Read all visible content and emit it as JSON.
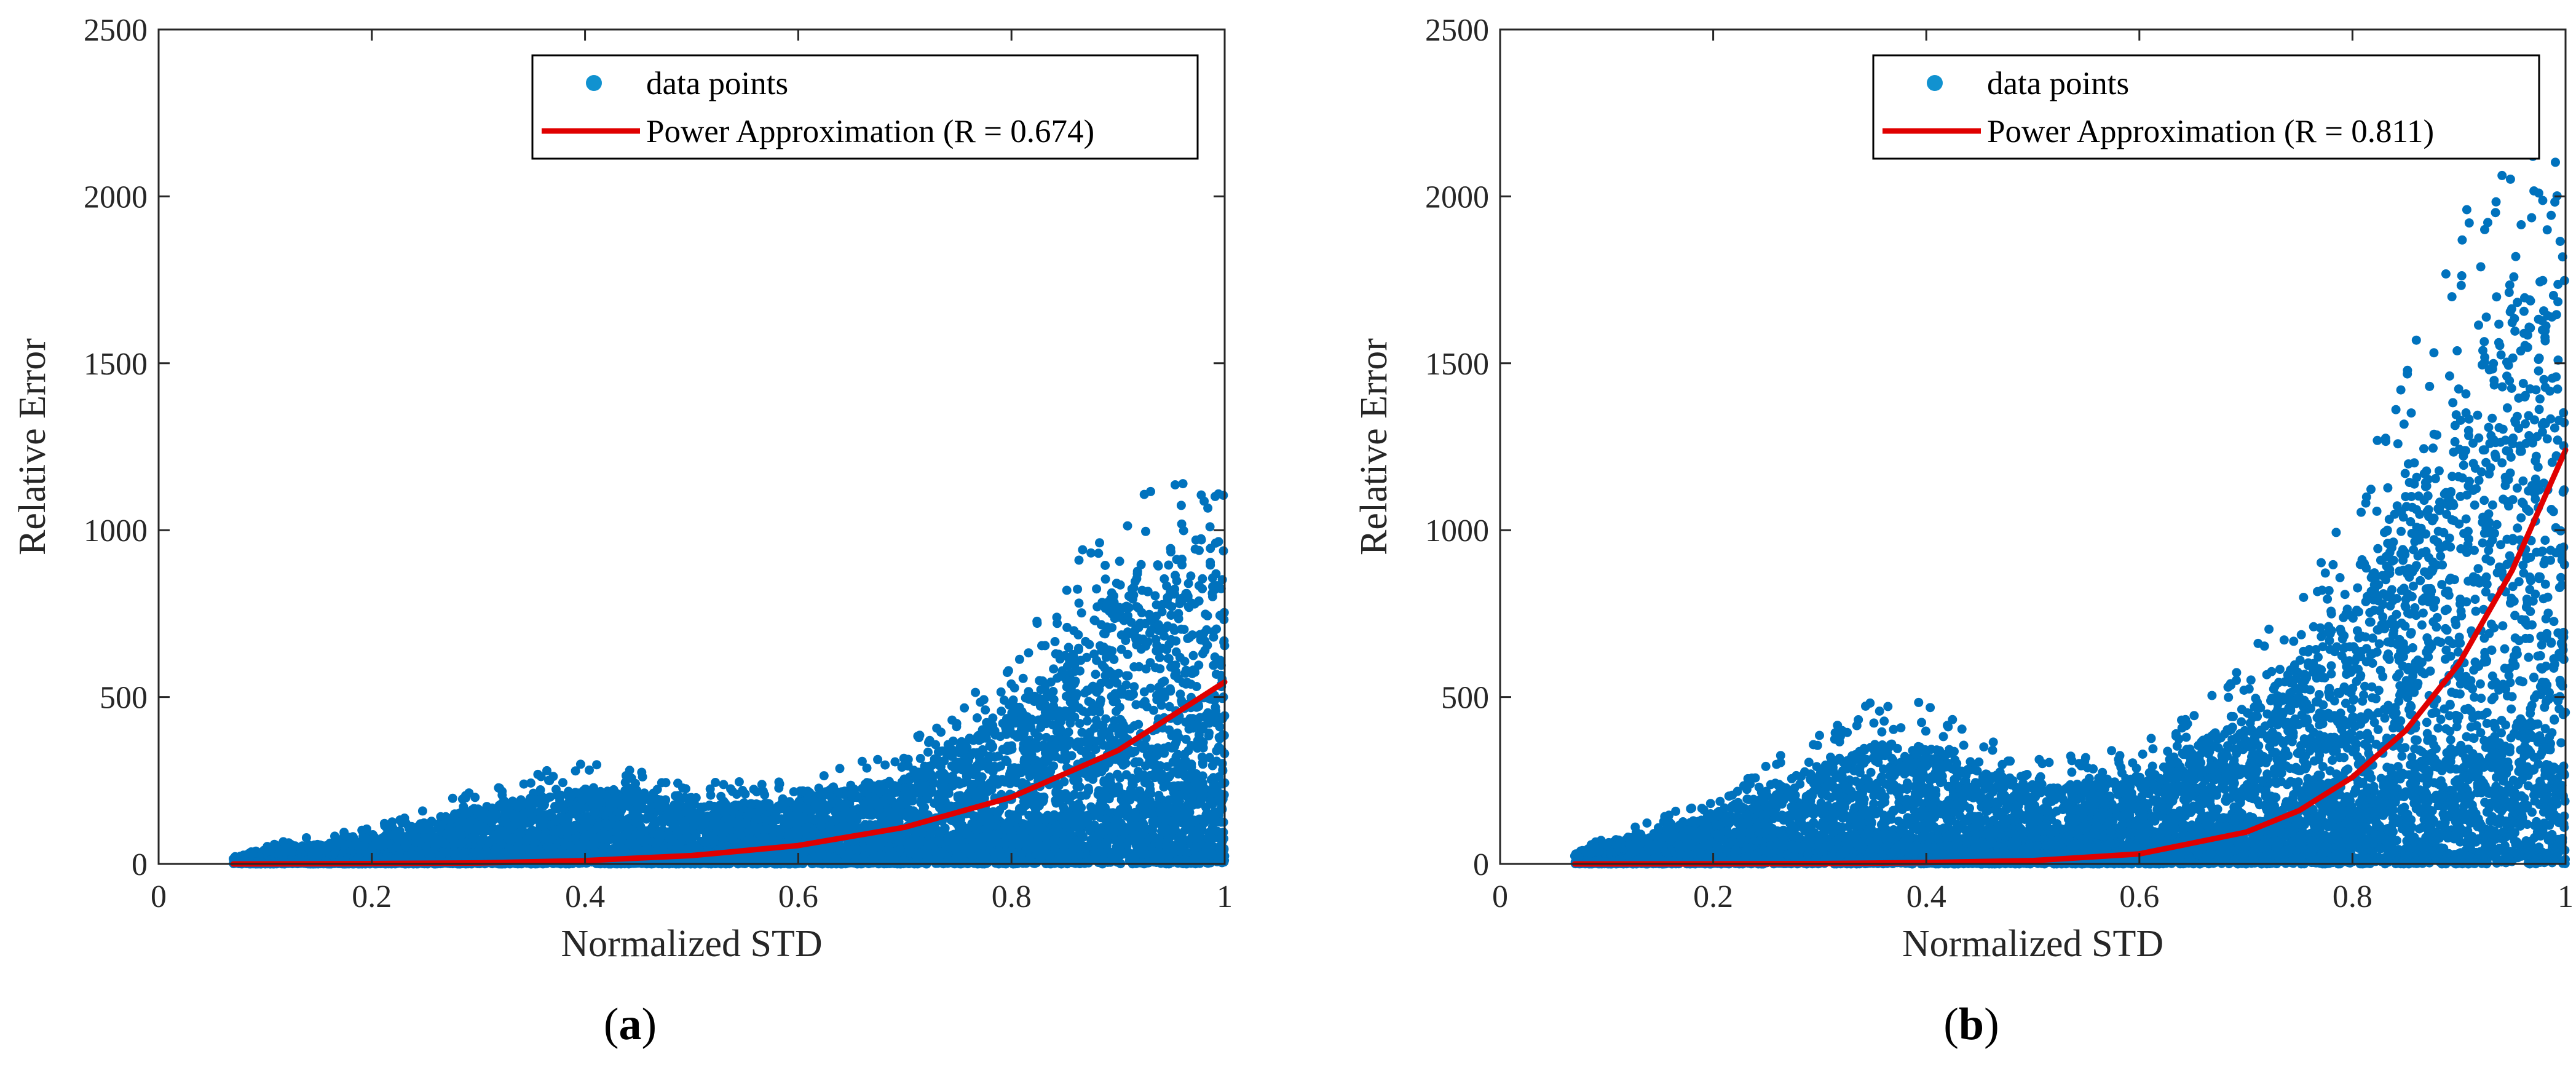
{
  "colors": {
    "points": "#0072BD",
    "fit": "#E00000",
    "axis": "#262626",
    "legend_marker": "#1192D0"
  },
  "chart_data": [
    {
      "type": "scatter",
      "panel_label": "a",
      "xlabel": "Normalized STD",
      "ylabel": "Relative Error",
      "xlim": [
        0,
        1
      ],
      "ylim": [
        0,
        2500
      ],
      "xticks": [
        0,
        0.2,
        0.4,
        0.6,
        0.8,
        1
      ],
      "xtick_labels": [
        "0",
        "0.2",
        "0.4",
        "0.6",
        "0.8",
        "1"
      ],
      "yticks": [
        0,
        500,
        1000,
        1500,
        2000,
        2500
      ],
      "ytick_labels": [
        "0",
        "500",
        "1000",
        "1500",
        "2000",
        "2500"
      ],
      "grid": false,
      "legend_position": "top-right",
      "series": [
        {
          "name": "data points",
          "kind": "scatter",
          "x_range": [
            0.07,
            1.0
          ],
          "approx_max_y": 1140,
          "envelope": [
            [
              0.07,
              25
            ],
            [
              0.1,
              45
            ],
            [
              0.2,
              80
            ],
            [
              0.3,
              170
            ],
            [
              0.4,
              230
            ],
            [
              0.5,
              180
            ],
            [
              0.6,
              190
            ],
            [
              0.7,
              260
            ],
            [
              0.8,
              460
            ],
            [
              0.85,
              650
            ],
            [
              0.9,
              850
            ],
            [
              0.95,
              950
            ],
            [
              1.0,
              1000
            ]
          ]
        },
        {
          "name": "Power Approximation (R = 0.674)",
          "kind": "line",
          "points": [
            [
              0.07,
              0
            ],
            [
              0.2,
              1
            ],
            [
              0.3,
              3
            ],
            [
              0.4,
              10
            ],
            [
              0.5,
              25
            ],
            [
              0.6,
              55
            ],
            [
              0.7,
              110
            ],
            [
              0.8,
              200
            ],
            [
              0.9,
              340
            ],
            [
              1.0,
              545
            ]
          ]
        }
      ]
    },
    {
      "type": "scatter",
      "panel_label": "b",
      "xlabel": "Normalized STD",
      "ylabel": "Relative Error",
      "xlim": [
        0,
        1
      ],
      "ylim": [
        0,
        2500
      ],
      "xticks": [
        0,
        0.2,
        0.4,
        0.6,
        0.8,
        1
      ],
      "xtick_labels": [
        "0",
        "0.2",
        "0.4",
        "0.6",
        "0.8",
        "1"
      ],
      "yticks": [
        0,
        500,
        1000,
        1500,
        2000,
        2500
      ],
      "ytick_labels": [
        "0",
        "500",
        "1000",
        "1500",
        "2000",
        "2500"
      ],
      "grid": false,
      "legend_position": "top-right",
      "series": [
        {
          "name": "data points",
          "kind": "scatter",
          "x_range": [
            0.07,
            1.0
          ],
          "approx_max_y": 2120,
          "envelope": [
            [
              0.07,
              30
            ],
            [
              0.1,
              60
            ],
            [
              0.2,
              150
            ],
            [
              0.3,
              300
            ],
            [
              0.35,
              370
            ],
            [
              0.4,
              360
            ],
            [
              0.5,
              230
            ],
            [
              0.6,
              260
            ],
            [
              0.7,
              450
            ],
            [
              0.8,
              800
            ],
            [
              0.85,
              1150
            ],
            [
              0.9,
              1450
            ],
            [
              0.95,
              1700
            ],
            [
              1.0,
              1800
            ]
          ]
        },
        {
          "name": "Power Approximation (R = 0.811)",
          "kind": "line",
          "points": [
            [
              0.07,
              0
            ],
            [
              0.3,
              1
            ],
            [
              0.4,
              4
            ],
            [
              0.5,
              10
            ],
            [
              0.6,
              30
            ],
            [
              0.7,
              95
            ],
            [
              0.75,
              160
            ],
            [
              0.8,
              260
            ],
            [
              0.85,
              400
            ],
            [
              0.9,
              600
            ],
            [
              0.95,
              880
            ],
            [
              1.0,
              1240
            ]
          ]
        }
      ]
    }
  ]
}
